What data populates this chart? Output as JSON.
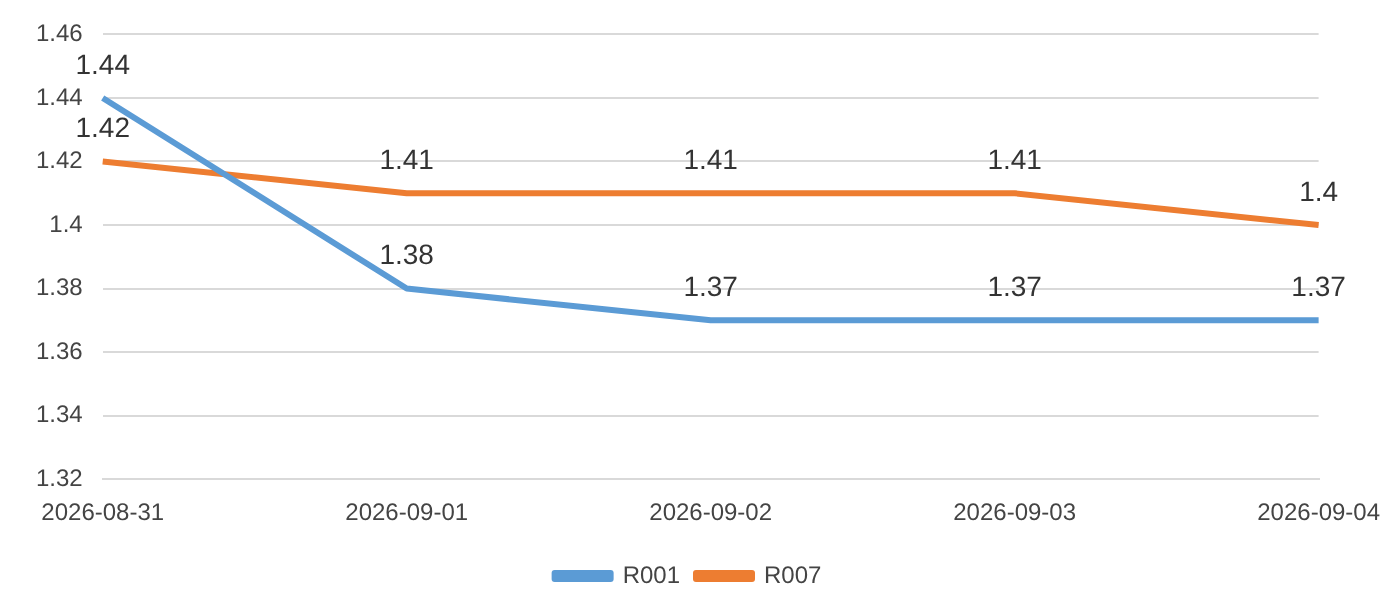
{
  "chart_data": {
    "type": "line",
    "categories": [
      "2026-08-31",
      "2026-09-01",
      "2026-09-02",
      "2026-09-03",
      "2026-09-04"
    ],
    "series": [
      {
        "name": "R001",
        "color": "#5b9bd5",
        "values": [
          1.44,
          1.38,
          1.37,
          1.37,
          1.37
        ]
      },
      {
        "name": "R007",
        "color": "#ed7d31",
        "values": [
          1.42,
          1.41,
          1.41,
          1.41,
          1.4
        ]
      }
    ],
    "ylim": [
      1.32,
      1.46
    ],
    "yticks": [
      1.32,
      1.34,
      1.36,
      1.38,
      1.4,
      1.42,
      1.44,
      1.46
    ],
    "grid": "y",
    "legend": "bottom",
    "data_labels": true,
    "marker": "none",
    "line_style": "solid"
  }
}
